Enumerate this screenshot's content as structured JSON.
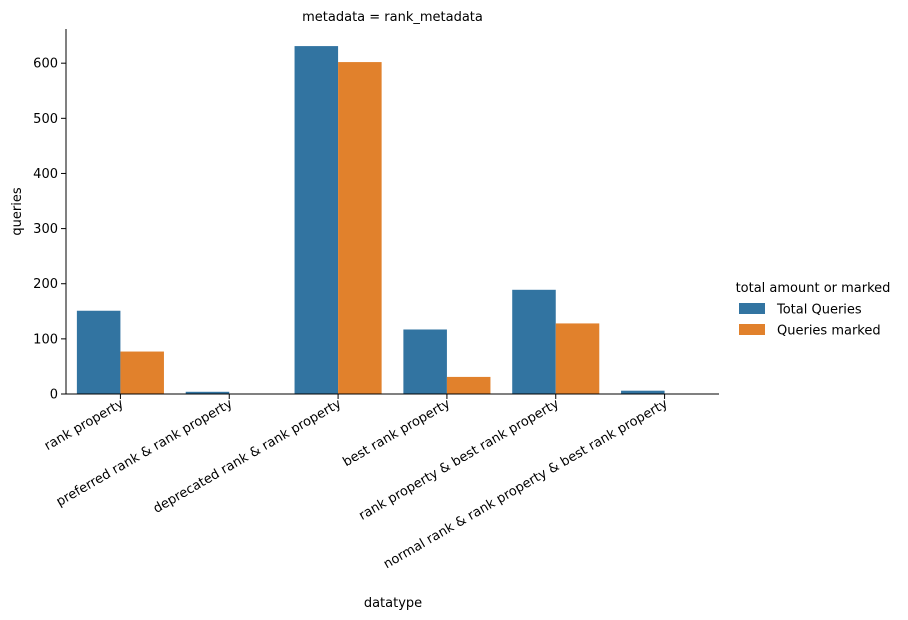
{
  "chart_data": {
    "type": "bar",
    "title": "metadata = rank_metadata",
    "xlabel": "datatype",
    "ylabel": "queries",
    "categories": [
      "rank property",
      "preferred rank & rank property",
      "deprecated rank & rank property",
      "best rank property",
      "rank property & best rank property",
      "normal rank & rank property & best rank property"
    ],
    "series": [
      {
        "name": "Total Queries",
        "color": "#3274a1",
        "values": [
          151,
          4,
          631,
          117,
          189,
          6
        ]
      },
      {
        "name": "Queries marked",
        "color": "#e1812c",
        "values": [
          77,
          0,
          602,
          31,
          128,
          0
        ]
      }
    ],
    "ylim": [
      0,
      662
    ],
    "yticks": [
      0,
      100,
      200,
      300,
      400,
      500,
      600
    ],
    "grid": false,
    "legend": {
      "title": "total amount or marked",
      "placement": "right"
    }
  }
}
